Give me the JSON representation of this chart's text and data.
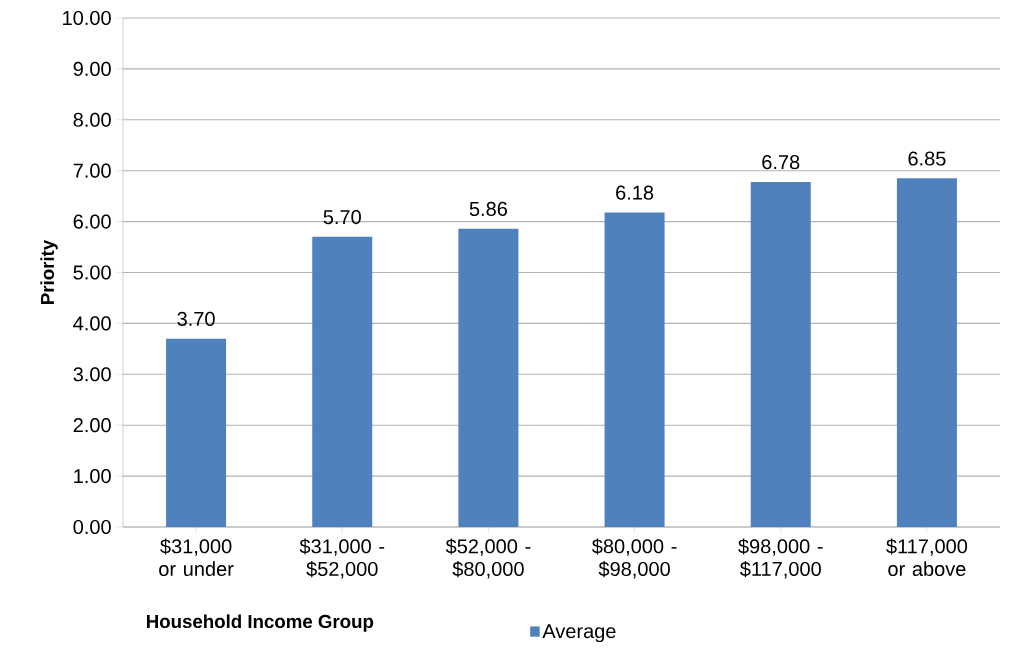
{
  "chart_data": {
    "type": "bar",
    "xlabel": "Household Income Group",
    "ylabel": "Priority",
    "categories": [
      "$31,000 or under",
      "$31,000 - $52,000",
      "$52,000 - $80,000",
      "$80,000 - $98,000",
      "$98,000 - $117,000",
      "$117,000 or above"
    ],
    "series": [
      {
        "name": "Average",
        "color": "#4f81bd",
        "values": [
          3.7,
          5.7,
          5.86,
          6.18,
          6.78,
          6.85
        ],
        "value_labels": [
          "3.70",
          "5.70",
          "5.86",
          "6.18",
          "6.78",
          "6.85"
        ]
      }
    ],
    "ylim": [
      0,
      10
    ],
    "yticks": [
      {
        "value": 0,
        "label": "0.00"
      },
      {
        "value": 1,
        "label": "1.00"
      },
      {
        "value": 2,
        "label": "2.00"
      },
      {
        "value": 3,
        "label": "3.00"
      },
      {
        "value": 4,
        "label": "4.00"
      },
      {
        "value": 5,
        "label": "5.00"
      },
      {
        "value": 6,
        "label": "6.00"
      },
      {
        "value": 7,
        "label": "7.00"
      },
      {
        "value": 8,
        "label": "8.00"
      },
      {
        "value": 9,
        "label": "9.00"
      },
      {
        "value": 10,
        "label": "10.00"
      }
    ],
    "grid": "y",
    "legend": "bottom"
  }
}
